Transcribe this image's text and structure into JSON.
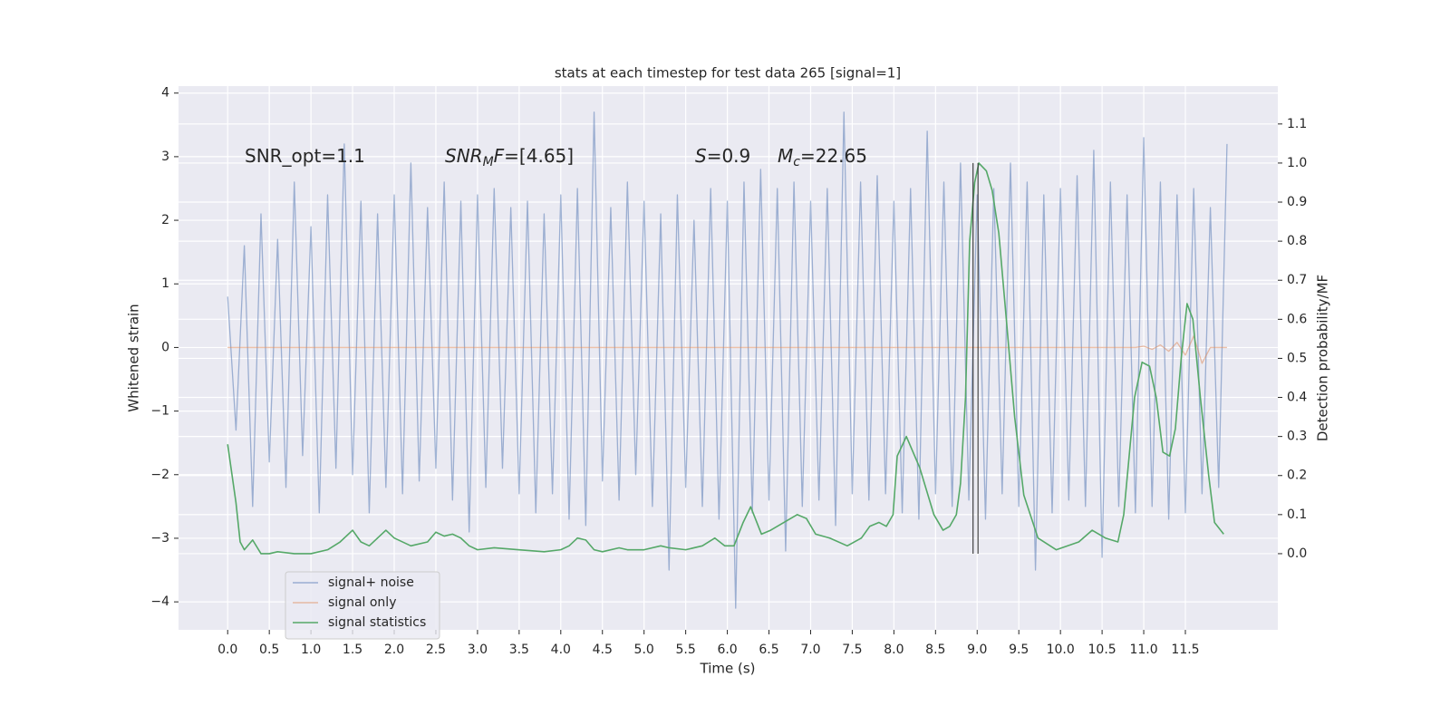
{
  "chart_data": {
    "type": "line",
    "title": "stats at each timestep for test data 265 [signal=1]",
    "xlabel": "Time (s)",
    "ylabel": "Whitened strain",
    "y2label": "Detection probability/MF",
    "xlim": [
      -0.59,
      12.61
    ],
    "ylim": [
      -4.44,
      4.11
    ],
    "y2lim": [
      -0.195,
      1.197
    ],
    "xticks": [
      {
        "value": 0,
        "label": "0.0"
      },
      {
        "value": 0.5,
        "label": "0.5"
      },
      {
        "value": 1,
        "label": "1.0"
      },
      {
        "value": 1.5,
        "label": "1.5"
      },
      {
        "value": 2,
        "label": "2.0"
      },
      {
        "value": 2.5,
        "label": "2.5"
      },
      {
        "value": 3,
        "label": "3.0"
      },
      {
        "value": 3.5,
        "label": "3.5"
      },
      {
        "value": 4,
        "label": "4.0"
      },
      {
        "value": 4.5,
        "label": "4.5"
      },
      {
        "value": 5,
        "label": "5.0"
      },
      {
        "value": 5.5,
        "label": "5.5"
      },
      {
        "value": 6,
        "label": "6.0"
      },
      {
        "value": 6.5,
        "label": "6.5"
      },
      {
        "value": 7,
        "label": "7.0"
      },
      {
        "value": 7.5,
        "label": "7.5"
      },
      {
        "value": 8,
        "label": "8.0"
      },
      {
        "value": 8.5,
        "label": "8.5"
      },
      {
        "value": 9,
        "label": "9.0"
      },
      {
        "value": 9.5,
        "label": "9.5"
      },
      {
        "value": 10,
        "label": "10.0"
      },
      {
        "value": 10.5,
        "label": "10.5"
      },
      {
        "value": 11,
        "label": "11.0"
      },
      {
        "value": 11.5,
        "label": "11.5"
      }
    ],
    "yticks": [
      {
        "value": -4,
        "label": "−4"
      },
      {
        "value": -3,
        "label": "−3"
      },
      {
        "value": -2,
        "label": "−2"
      },
      {
        "value": -1,
        "label": "−1"
      },
      0,
      1,
      2,
      3,
      4
    ],
    "y2ticks": [
      {
        "value": 0,
        "label": "0.0"
      },
      {
        "value": 0.1,
        "label": "0.1"
      },
      {
        "value": 0.2,
        "label": "0.2"
      },
      {
        "value": 0.3,
        "label": "0.3"
      },
      {
        "value": 0.4,
        "label": "0.4"
      },
      {
        "value": 0.5,
        "label": "0.5"
      },
      {
        "value": 0.6,
        "label": "0.6"
      },
      {
        "value": 0.7,
        "label": "0.7"
      },
      {
        "value": 0.8,
        "label": "0.8"
      },
      {
        "value": 0.9,
        "label": "0.9"
      },
      {
        "value": 1,
        "label": "1.0"
      },
      {
        "value": 1.1,
        "label": "1.1"
      }
    ],
    "grid": true,
    "legend": "lower left",
    "series": [
      {
        "name": "signal+ noise",
        "color": "#4c72b0",
        "alpha": 0.5,
        "x": [
          0.0,
          0.1,
          0.2,
          0.3,
          0.4,
          0.5,
          0.6,
          0.7,
          0.8,
          0.9,
          1.0,
          1.1,
          1.2,
          1.3,
          1.4,
          1.5,
          1.6,
          1.7,
          1.8,
          1.9,
          2.0,
          2.1,
          2.2,
          2.3,
          2.4,
          2.5,
          2.6,
          2.7,
          2.8,
          2.9,
          3.0,
          3.1,
          3.2,
          3.3,
          3.4,
          3.5,
          3.6,
          3.7,
          3.8,
          3.9,
          4.0,
          4.1,
          4.2,
          4.3,
          4.4,
          4.5,
          4.6,
          4.7,
          4.8,
          4.9,
          5.0,
          5.1,
          5.2,
          5.3,
          5.4,
          5.5,
          5.6,
          5.7,
          5.8,
          5.9,
          6.0,
          6.1,
          6.2,
          6.3,
          6.4,
          6.5,
          6.6,
          6.7,
          6.8,
          6.9,
          7.0,
          7.1,
          7.2,
          7.3,
          7.4,
          7.5,
          7.6,
          7.7,
          7.8,
          7.9,
          8.0,
          8.1,
          8.2,
          8.3,
          8.4,
          8.5,
          8.6,
          8.7,
          8.8,
          8.9,
          9.0,
          9.1,
          9.2,
          9.3,
          9.4,
          9.5,
          9.6,
          9.7,
          9.8,
          9.9,
          10.0,
          10.1,
          10.2,
          10.3,
          10.4,
          10.5,
          10.6,
          10.7,
          10.8,
          10.9,
          11.0,
          11.1,
          11.2,
          11.3,
          11.4,
          11.5,
          11.6,
          11.7,
          11.8,
          11.9,
          12.0
        ],
        "values": [
          0.8,
          -1.3,
          1.6,
          -2.5,
          2.1,
          -1.8,
          1.7,
          -2.2,
          2.6,
          -1.7,
          1.9,
          -2.6,
          2.4,
          -1.9,
          3.2,
          -2.0,
          2.3,
          -2.6,
          2.1,
          -2.2,
          2.4,
          -2.3,
          2.9,
          -2.1,
          2.2,
          -1.9,
          2.6,
          -2.4,
          2.3,
          -2.9,
          2.4,
          -2.2,
          2.5,
          -1.9,
          2.2,
          -2.3,
          2.3,
          -2.6,
          2.1,
          -2.3,
          2.4,
          -2.7,
          2.5,
          -2.8,
          3.7,
          -2.1,
          2.2,
          -2.4,
          2.6,
          -2.0,
          2.3,
          -2.5,
          2.1,
          -3.5,
          2.4,
          -2.2,
          2.0,
          -2.5,
          2.5,
          -2.7,
          2.3,
          -4.1,
          2.6,
          -2.6,
          2.8,
          -2.4,
          2.5,
          -3.2,
          2.6,
          -2.5,
          2.3,
          -2.4,
          2.5,
          -2.8,
          3.7,
          -2.3,
          2.6,
          -2.4,
          2.7,
          -2.3,
          2.3,
          -2.6,
          2.5,
          -2.7,
          3.4,
          -2.3,
          2.6,
          -2.5,
          2.9,
          -2.4,
          2.4,
          -2.7,
          2.5,
          -2.3,
          2.9,
          -2.5,
          2.6,
          -3.5,
          2.4,
          -2.6,
          2.5,
          -2.4,
          2.7,
          -2.5,
          3.1,
          -3.3,
          2.6,
          -2.5,
          2.4,
          -2.6,
          3.3,
          -2.5,
          2.6,
          -2.7,
          2.4,
          -2.6,
          2.5,
          -2.3,
          2.2,
          -2.2,
          3.2
        ]
      },
      {
        "name": "signal only",
        "color": "#dd8452",
        "alpha": 0.5,
        "x": [
          0.0,
          0.1,
          0.2,
          0.3,
          0.4,
          0.5,
          0.6,
          0.7,
          0.8,
          0.9,
          1.0,
          1.1,
          1.2,
          1.3,
          1.4,
          1.5,
          1.6,
          1.7,
          1.8,
          1.9,
          2.0,
          2.1,
          2.2,
          2.3,
          2.4,
          2.5,
          2.6,
          2.7,
          2.8,
          2.9,
          3.0,
          3.1,
          3.2,
          3.3,
          3.4,
          3.5,
          3.6,
          3.7,
          3.8,
          3.9,
          4.0,
          4.1,
          4.2,
          4.3,
          4.4,
          4.5,
          4.6,
          4.7,
          4.8,
          4.9,
          5.0,
          5.1,
          5.2,
          5.3,
          5.4,
          5.5,
          5.6,
          5.7,
          5.8,
          5.9,
          6.0,
          6.1,
          6.2,
          6.3,
          6.4,
          6.5,
          6.6,
          6.7,
          6.8,
          6.9,
          7.0,
          7.1,
          7.2,
          7.3,
          7.4,
          7.5,
          7.6,
          7.7,
          7.8,
          7.9,
          8.0,
          8.1,
          8.2,
          8.3,
          8.4,
          8.5,
          8.6,
          8.7,
          8.8,
          8.9,
          9.0,
          9.1,
          9.2,
          9.3,
          9.4,
          9.5,
          9.6,
          9.7,
          9.8,
          9.9,
          10.0,
          10.1,
          10.2,
          10.3,
          10.4,
          10.5,
          10.6,
          10.7,
          10.8,
          10.9,
          11.0,
          11.1,
          11.2,
          11.3,
          11.4,
          11.5,
          11.6,
          11.7,
          11.8,
          11.9,
          12.0
        ],
        "values": [
          0,
          0,
          0,
          0,
          0,
          0,
          0,
          0,
          0,
          0,
          0,
          0,
          0,
          0,
          0,
          0,
          0,
          0,
          0,
          0,
          0,
          0,
          0,
          0,
          0,
          0,
          0,
          0,
          0,
          0,
          0,
          0,
          0,
          0,
          0,
          0,
          0,
          0,
          0,
          0,
          0,
          0,
          0,
          0,
          0,
          0,
          0,
          0,
          0,
          0,
          0,
          0,
          0,
          0,
          0,
          0,
          0,
          0,
          0,
          0,
          0,
          0,
          0,
          0,
          0,
          0,
          0,
          0,
          0,
          0,
          0,
          0,
          0,
          0,
          0,
          0,
          0,
          0,
          0,
          0,
          0,
          0,
          0,
          0,
          0,
          0,
          0,
          0,
          0,
          0,
          0,
          0,
          0,
          0,
          0,
          0,
          0,
          0,
          0,
          0,
          0,
          0,
          0,
          0,
          0,
          0,
          0,
          0,
          0,
          0,
          0.02,
          -0.03,
          0.04,
          -0.06,
          0.08,
          -0.12,
          0.18,
          -0.25,
          0,
          0,
          0
        ]
      },
      {
        "name": "signal statistics",
        "color": "#55a868",
        "axis": "y2",
        "x": [
          0.0,
          0.1,
          0.15,
          0.2,
          0.3,
          0.4,
          0.5,
          0.6,
          0.8,
          1.0,
          1.2,
          1.35,
          1.5,
          1.6,
          1.7,
          1.8,
          1.9,
          2.0,
          2.2,
          2.4,
          2.5,
          2.6,
          2.7,
          2.8,
          2.9,
          3.0,
          3.2,
          3.5,
          3.8,
          4.0,
          4.1,
          4.2,
          4.3,
          4.4,
          4.5,
          4.7,
          4.8,
          5.0,
          5.2,
          5.3,
          5.5,
          5.7,
          5.85,
          5.97,
          6.08,
          6.19,
          6.28,
          6.41,
          6.52,
          6.68,
          6.84,
          6.95,
          7.06,
          7.23,
          7.44,
          7.61,
          7.71,
          7.82,
          7.91,
          7.99,
          8.04,
          8.15,
          8.31,
          8.48,
          8.59,
          8.67,
          8.75,
          8.8,
          8.86,
          8.91,
          8.97,
          9.02,
          9.11,
          9.18,
          9.26,
          9.35,
          9.45,
          9.56,
          9.73,
          9.95,
          10.22,
          10.38,
          10.54,
          10.69,
          10.76,
          10.89,
          10.98,
          11.07,
          11.15,
          11.23,
          11.31,
          11.38,
          11.45,
          11.52,
          11.59,
          11.68,
          11.78,
          11.85,
          11.96
        ],
        "values": [
          0.28,
          0.13,
          0.03,
          0.01,
          0.035,
          0.0,
          0.0,
          0.005,
          0.0,
          0.0,
          0.01,
          0.03,
          0.06,
          0.03,
          0.02,
          0.04,
          0.06,
          0.04,
          0.02,
          0.03,
          0.055,
          0.045,
          0.05,
          0.04,
          0.02,
          0.01,
          0.015,
          0.01,
          0.005,
          0.01,
          0.02,
          0.04,
          0.035,
          0.01,
          0.005,
          0.015,
          0.01,
          0.01,
          0.02,
          0.015,
          0.01,
          0.02,
          0.04,
          0.02,
          0.02,
          0.08,
          0.12,
          0.05,
          0.06,
          0.08,
          0.1,
          0.09,
          0.05,
          0.04,
          0.02,
          0.04,
          0.07,
          0.08,
          0.07,
          0.1,
          0.25,
          0.3,
          0.22,
          0.1,
          0.06,
          0.07,
          0.1,
          0.18,
          0.4,
          0.8,
          0.95,
          1.0,
          0.98,
          0.93,
          0.82,
          0.6,
          0.35,
          0.15,
          0.04,
          0.01,
          0.03,
          0.06,
          0.04,
          0.03,
          0.1,
          0.4,
          0.49,
          0.48,
          0.4,
          0.26,
          0.25,
          0.32,
          0.5,
          0.64,
          0.6,
          0.4,
          0.2,
          0.08,
          0.05
        ]
      }
    ],
    "vlines": {
      "x": [
        8.95,
        9.01
      ],
      "ymin": 0,
      "ymax": 1.0,
      "color": "#333333"
    },
    "annotations": [
      {
        "parts": [
          {
            "text": "SNR_opt=1.1",
            "style": "normal"
          }
        ]
      },
      {
        "parts": [
          {
            "text": "SNR",
            "style": "italic"
          },
          {
            "text": "M",
            "style": "sub"
          },
          {
            "text": "F",
            "style": "italic"
          },
          {
            "text": "=[4.65]",
            "style": "normal"
          }
        ]
      },
      {
        "parts": [
          {
            "text": "S",
            "style": "italic"
          },
          {
            "text": "=0.9",
            "style": "normal"
          }
        ]
      },
      {
        "parts": [
          {
            "text": "M",
            "style": "italic"
          },
          {
            "text": "c",
            "style": "sub"
          },
          {
            "text": "=22.65",
            "style": "normal"
          }
        ]
      }
    ]
  }
}
